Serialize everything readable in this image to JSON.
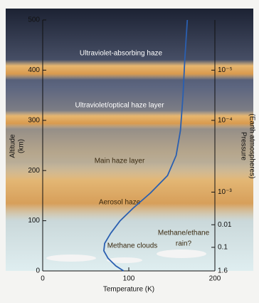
{
  "chart_data": {
    "type": "line",
    "x_label": "Temperature (K)",
    "y_label": [
      "Altitude",
      "(km)"
    ],
    "y2_label": [
      "Pressure",
      "(Earth atmospheres)"
    ],
    "xlim": [
      0,
      200
    ],
    "xticks": [
      0,
      100,
      200
    ],
    "ylim": [
      0,
      500
    ],
    "yticks": [
      0,
      100,
      200,
      300,
      400,
      500
    ],
    "pressure_ticks": [
      {
        "altitude": 400,
        "pressure": 1e-05,
        "label": "10⁻⁵"
      },
      {
        "altitude": 300,
        "pressure": 0.0001,
        "label": "10⁻⁴"
      },
      {
        "altitude": 157,
        "pressure": 0.001,
        "label": "10⁻³"
      },
      {
        "altitude": 92,
        "pressure": 0.01,
        "label": "0.01"
      },
      {
        "altitude": 47,
        "pressure": 0.1,
        "label": "0.1"
      },
      {
        "altitude": 0,
        "pressure": 1.6,
        "label": "1.6"
      }
    ],
    "series": [
      {
        "color": "#2a5fb0",
        "x": [
          94,
          85,
          76,
          71,
          72,
          79,
          90,
          105,
          125,
          145,
          155,
          160,
          163,
          165,
          168
        ],
        "values": [
          0,
          10,
          25,
          40,
          55,
          75,
          100,
          125,
          155,
          190,
          230,
          280,
          350,
          420,
          500
        ]
      }
    ],
    "annotations": [
      "Ultraviolet-absorbing haze",
      "Ultraviolet/optical haze layer",
      "Main haze layer",
      "Aerosol haze",
      "Methane clouds",
      "Methane/ethane",
      "rain?"
    ]
  }
}
